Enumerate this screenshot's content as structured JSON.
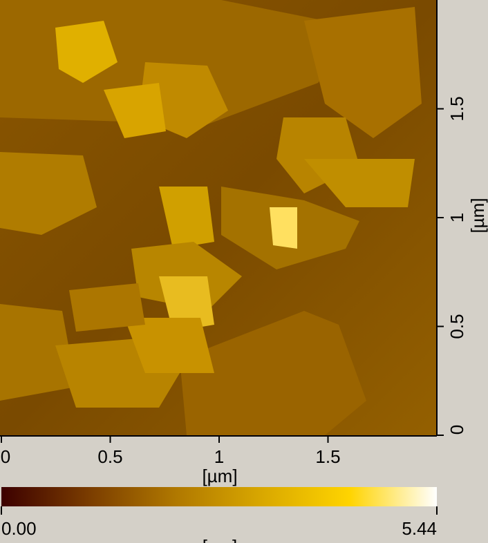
{
  "chart_data": {
    "type": "heatmap",
    "xlabel": "[µm]",
    "ylabel": "[µm]",
    "xlim": [
      0,
      2
    ],
    "xticks": [
      0,
      0.5,
      1,
      1.5
    ],
    "ylim": [
      0,
      2
    ],
    "yticks": [
      0,
      0.5,
      1,
      1.5
    ],
    "colorbar": {
      "label": "[nm]",
      "lim": [
        0,
        5.44
      ],
      "ticks": [
        {
          "value": 0,
          "label": "0.00"
        },
        5.44
      ],
      "colors": [
        "#3c0000",
        "#7a3c00",
        "#b07800",
        "#d9a800",
        "#ffd400",
        "#ffffff"
      ]
    }
  }
}
